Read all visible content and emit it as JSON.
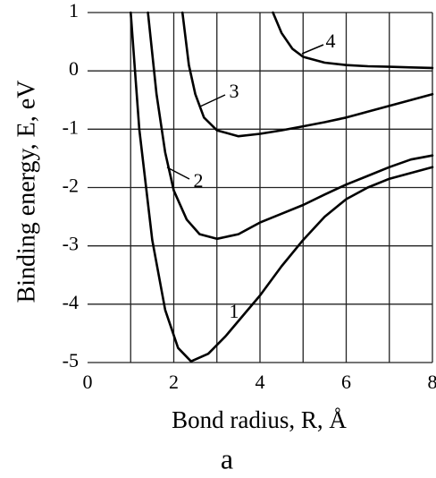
{
  "chart_data": {
    "type": "line",
    "y_label": "Binding energy,  E, eV",
    "x_label": "Bond radius, R, Å",
    "caption": "a",
    "xlim": [
      0,
      8
    ],
    "xticks": [
      0,
      2,
      4,
      6,
      8
    ],
    "xminorticks": [
      1,
      3,
      5,
      7
    ],
    "ylim": [
      -5,
      1
    ],
    "yticks": [
      1,
      0,
      -1,
      -2,
      -3,
      -4,
      -5
    ],
    "grid": true,
    "series": [
      {
        "name": "1",
        "color": "#000000",
        "x": [
          1.0,
          1.2,
          1.5,
          1.8,
          2.1,
          2.4,
          2.8,
          3.2,
          3.6,
          4.0,
          4.5,
          5.0,
          5.5,
          6.0,
          6.5,
          7.0,
          7.5,
          8.0
        ],
        "values": [
          1,
          -1,
          -2.9,
          -4.1,
          -4.75,
          -4.98,
          -4.85,
          -4.55,
          -4.2,
          -3.85,
          -3.35,
          -2.9,
          -2.5,
          -2.2,
          -2.0,
          -1.85,
          -1.75,
          -1.65
        ]
      },
      {
        "name": "2",
        "color": "#000000",
        "x": [
          1.4,
          1.6,
          1.8,
          2.0,
          2.3,
          2.6,
          3.0,
          3.5,
          4.0,
          4.5,
          5.0,
          5.5,
          6.0,
          6.5,
          7.0,
          7.5,
          8.0
        ],
        "values": [
          1,
          -0.4,
          -1.4,
          -2.05,
          -2.55,
          -2.8,
          -2.88,
          -2.8,
          -2.6,
          -2.45,
          -2.3,
          -2.12,
          -1.95,
          -1.8,
          -1.65,
          -1.52,
          -1.45
        ]
      },
      {
        "name": "3",
        "color": "#000000",
        "x": [
          2.2,
          2.35,
          2.5,
          2.7,
          3.0,
          3.5,
          4.0,
          4.5,
          5.0,
          5.5,
          6.0,
          6.5,
          7.0,
          7.5,
          8.0
        ],
        "values": [
          1,
          0.1,
          -0.4,
          -0.8,
          -1.02,
          -1.12,
          -1.08,
          -1.02,
          -0.95,
          -0.88,
          -0.8,
          -0.7,
          -0.6,
          -0.5,
          -0.4
        ]
      },
      {
        "name": "4",
        "color": "#000000",
        "x": [
          4.3,
          4.5,
          4.75,
          5.0,
          5.5,
          6.0,
          6.5,
          7.0,
          7.5,
          8.0
        ],
        "values": [
          1,
          0.65,
          0.38,
          0.24,
          0.14,
          0.1,
          0.08,
          0.07,
          0.06,
          0.05
        ]
      }
    ]
  }
}
